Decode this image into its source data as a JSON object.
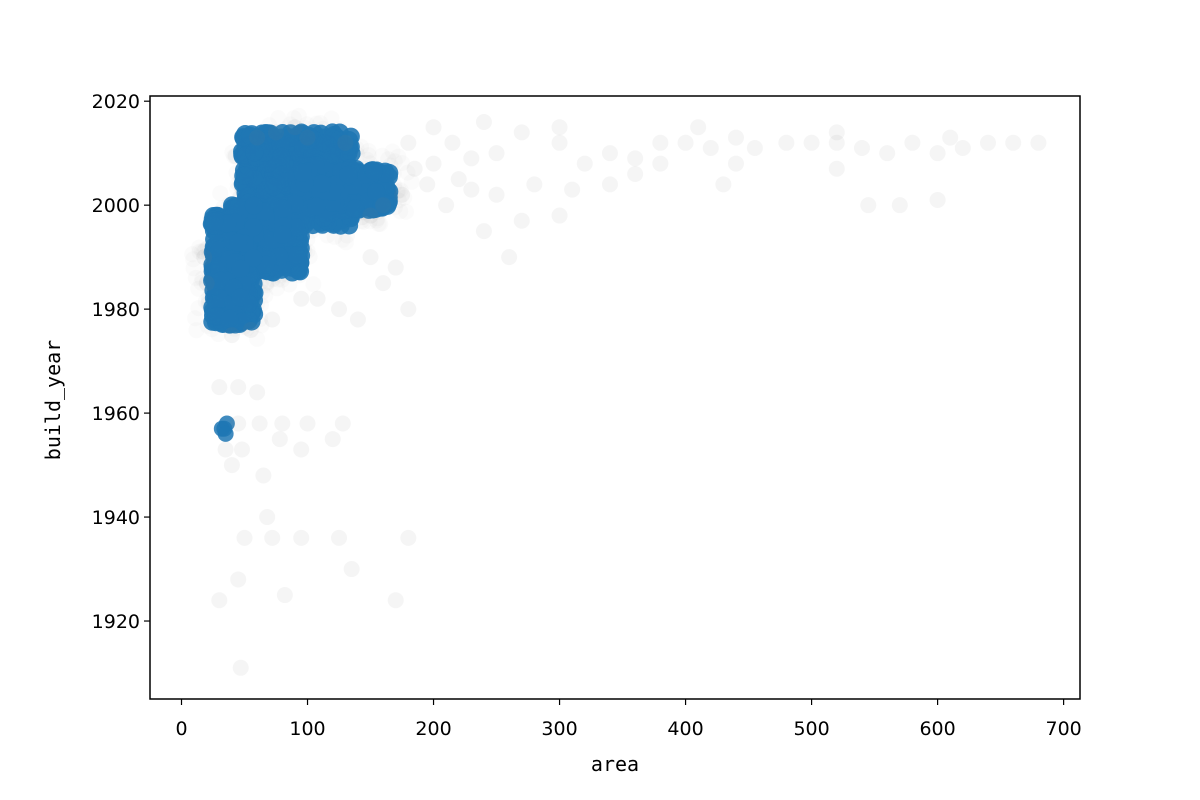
{
  "chart_data": {
    "type": "scatter",
    "xlabel": "area",
    "ylabel": "build_year",
    "xlim": [
      -25,
      713
    ],
    "ylim": [
      1905,
      2021
    ],
    "xticks": [
      0,
      100,
      200,
      300,
      400,
      500,
      600,
      700
    ],
    "yticks": [
      1920,
      1940,
      1960,
      1980,
      2000,
      2020
    ],
    "grid": false,
    "point_color": "#1f77b4",
    "faint_color": "#7f7f7f",
    "dense_regions": [
      {
        "x": [
          24,
          58
        ],
        "y": [
          1977,
          1998
        ]
      },
      {
        "x": [
          40,
          95
        ],
        "y": [
          1987,
          2000
        ]
      },
      {
        "x": [
          48,
          135
        ],
        "y": [
          1996,
          2014
        ]
      },
      {
        "x": [
          90,
          165
        ],
        "y": [
          1999,
          2007
        ]
      }
    ],
    "points": [
      [
        90,
        2015
      ],
      [
        100,
        2013
      ],
      [
        75,
        2014
      ],
      [
        60,
        2013
      ],
      [
        130,
        2012
      ],
      [
        34,
        1957
      ],
      [
        32,
        1957
      ],
      [
        36,
        1958
      ],
      [
        35,
        1956
      ],
      [
        30,
        1965
      ],
      [
        45,
        1965
      ],
      [
        60,
        1964
      ],
      [
        35,
        1953
      ],
      [
        48,
        1953
      ],
      [
        45,
        1958
      ],
      [
        62,
        1958
      ],
      [
        80,
        1958
      ],
      [
        100,
        1958
      ],
      [
        128,
        1958
      ],
      [
        40,
        1950
      ],
      [
        65,
        1948
      ],
      [
        78,
        1955
      ],
      [
        95,
        1953
      ],
      [
        120,
        1955
      ],
      [
        68,
        1940
      ],
      [
        50,
        1936
      ],
      [
        72,
        1936
      ],
      [
        95,
        1936
      ],
      [
        125,
        1936
      ],
      [
        180,
        1936
      ],
      [
        30,
        1924
      ],
      [
        82,
        1925
      ],
      [
        170,
        1924
      ],
      [
        45,
        1928
      ],
      [
        135,
        1930
      ],
      [
        47,
        1911
      ],
      [
        40,
        1975
      ],
      [
        55,
        1976
      ],
      [
        72,
        1978
      ],
      [
        95,
        1982
      ],
      [
        108,
        1982
      ],
      [
        125,
        1980
      ],
      [
        140,
        1978
      ],
      [
        180,
        1980
      ],
      [
        160,
        1985
      ],
      [
        18,
        1990
      ],
      [
        20,
        1985
      ],
      [
        150,
        1990
      ],
      [
        170,
        1988
      ],
      [
        260,
        1990
      ],
      [
        240,
        1995
      ],
      [
        270,
        1997
      ],
      [
        300,
        1998
      ],
      [
        195,
        2004
      ],
      [
        220,
        2005
      ],
      [
        215,
        2012
      ],
      [
        250,
        2010
      ],
      [
        270,
        2014
      ],
      [
        300,
        2012
      ],
      [
        320,
        2008
      ],
      [
        340,
        2010
      ],
      [
        360,
        2009
      ],
      [
        380,
        2012
      ],
      [
        400,
        2012
      ],
      [
        420,
        2011
      ],
      [
        440,
        2013
      ],
      [
        455,
        2011
      ],
      [
        480,
        2012
      ],
      [
        500,
        2012
      ],
      [
        520,
        2012
      ],
      [
        540,
        2011
      ],
      [
        560,
        2010
      ],
      [
        580,
        2012
      ],
      [
        600,
        2010
      ],
      [
        620,
        2011
      ],
      [
        640,
        2012
      ],
      [
        660,
        2012
      ],
      [
        680,
        2012
      ],
      [
        430,
        2004
      ],
      [
        440,
        2008
      ],
      [
        210,
        2000
      ],
      [
        230,
        2003
      ],
      [
        250,
        2002
      ],
      [
        280,
        2004
      ],
      [
        310,
        2003
      ],
      [
        340,
        2004
      ],
      [
        360,
        2006
      ],
      [
        380,
        2008
      ],
      [
        520,
        2007
      ],
      [
        545,
        2000
      ],
      [
        570,
        2000
      ],
      [
        600,
        2001
      ],
      [
        410,
        2015
      ],
      [
        520,
        2014
      ],
      [
        610,
        2013
      ],
      [
        230,
        2009
      ],
      [
        180,
        2012
      ],
      [
        200,
        2015
      ],
      [
        240,
        2016
      ],
      [
        300,
        2015
      ],
      [
        150,
        1998
      ],
      [
        160,
        2000
      ],
      [
        175,
        2002
      ],
      [
        185,
        2007
      ],
      [
        200,
        2008
      ]
    ]
  }
}
